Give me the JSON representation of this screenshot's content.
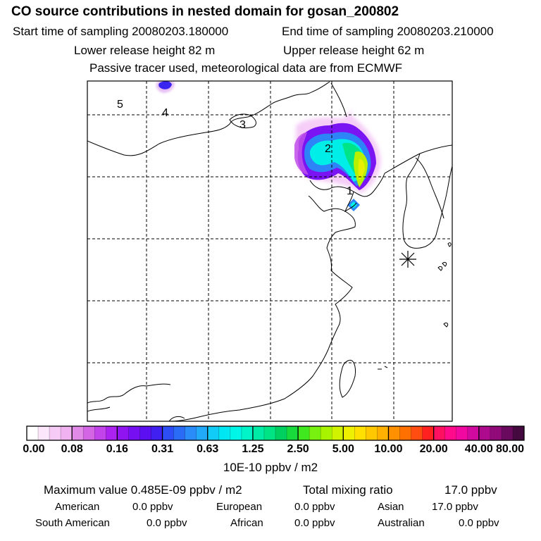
{
  "header": {
    "title": "CO  source contributions in nested domain for gosan_200802",
    "start_label": "Start time of sampling 20080203.180000",
    "end_label": "End time of sampling 20080203.210000",
    "lower_label": "Lower release height   82 m",
    "upper_label": "Upper release height   62 m",
    "note": "Passive tracer used, meteorological data are from ECMWF"
  },
  "map": {
    "station_marker": "asterisk-station-marker",
    "trajectory_labels": [
      "5",
      "4",
      "3",
      "2",
      "1"
    ]
  },
  "colorbar": {
    "ticks": [
      "0.00",
      "0.08",
      "0.16",
      "0.31",
      "0.63",
      "1.25",
      "2.50",
      "5.00",
      "10.00",
      "20.00",
      "40.00",
      "80.00"
    ],
    "unit": "10E-10 ppbv / m2",
    "colors": [
      "#ffffff",
      "#fbe6fb",
      "#f6ccf6",
      "#f0b2f0",
      "#e28ae8",
      "#d466e6",
      "#c243ea",
      "#ac22f0",
      "#9014f2",
      "#7610f2",
      "#5c10f2",
      "#4020f0",
      "#2c4ef4",
      "#2a6cf6",
      "#2a8cf8",
      "#22aafa",
      "#10ccf6",
      "#00e6f2",
      "#00f6e6",
      "#00f4c8",
      "#00eca6",
      "#00e486",
      "#00d060",
      "#18da3c",
      "#40e820",
      "#78f010",
      "#a8f400",
      "#d0f400",
      "#eef000",
      "#ffe000",
      "#ffc800",
      "#ffb000",
      "#ff9000",
      "#ff7000",
      "#ff4c10",
      "#ff2020",
      "#ff1060",
      "#ff0a8a",
      "#f008a0",
      "#d00a9e",
      "#ae0a8e",
      "#900a7a",
      "#6a0a5e",
      "#440a40"
    ],
    "major_index": [
      0,
      4,
      8,
      12,
      16,
      20,
      24,
      28,
      32,
      36,
      40,
      44
    ]
  },
  "footer": {
    "max_label": "Maximum value  0.485E-09 ppbv / m2",
    "total_label": "Total mixing ratio",
    "total_value": "17.0 ppbv",
    "regions": [
      {
        "name": "American",
        "value": "0.0 ppbv"
      },
      {
        "name": "European",
        "value": "0.0 ppbv"
      },
      {
        "name": "Asian",
        "value": "17.0 ppbv"
      },
      {
        "name": "South American",
        "value": "0.0 ppbv"
      },
      {
        "name": "African",
        "value": "0.0 ppbv"
      },
      {
        "name": "Australian",
        "value": "0.0 ppbv"
      }
    ]
  }
}
